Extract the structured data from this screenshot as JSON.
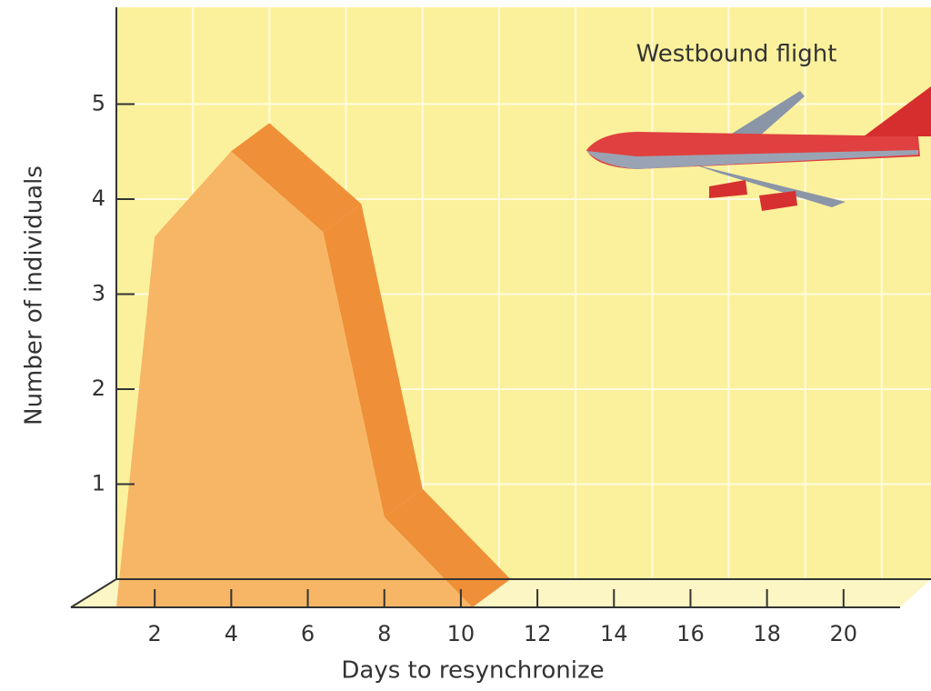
{
  "chart_data": {
    "type": "area",
    "annotation": "Westbound flight",
    "x_label": "Days to resynchronize",
    "y_label": "Number of individuals",
    "x": [
      1,
      2,
      4,
      6.4,
      8,
      10.3
    ],
    "values": [
      0,
      3.9,
      4.8,
      3.95,
      0.95,
      0
    ],
    "color": "#f6b665",
    "xlim": [
      0,
      22
    ],
    "xticks": [
      2,
      4,
      6,
      8,
      10,
      12,
      14,
      16,
      18,
      20
    ],
    "ylim": [
      0,
      6
    ],
    "yticks": [
      1,
      2,
      3,
      4,
      5
    ],
    "grid": true
  }
}
